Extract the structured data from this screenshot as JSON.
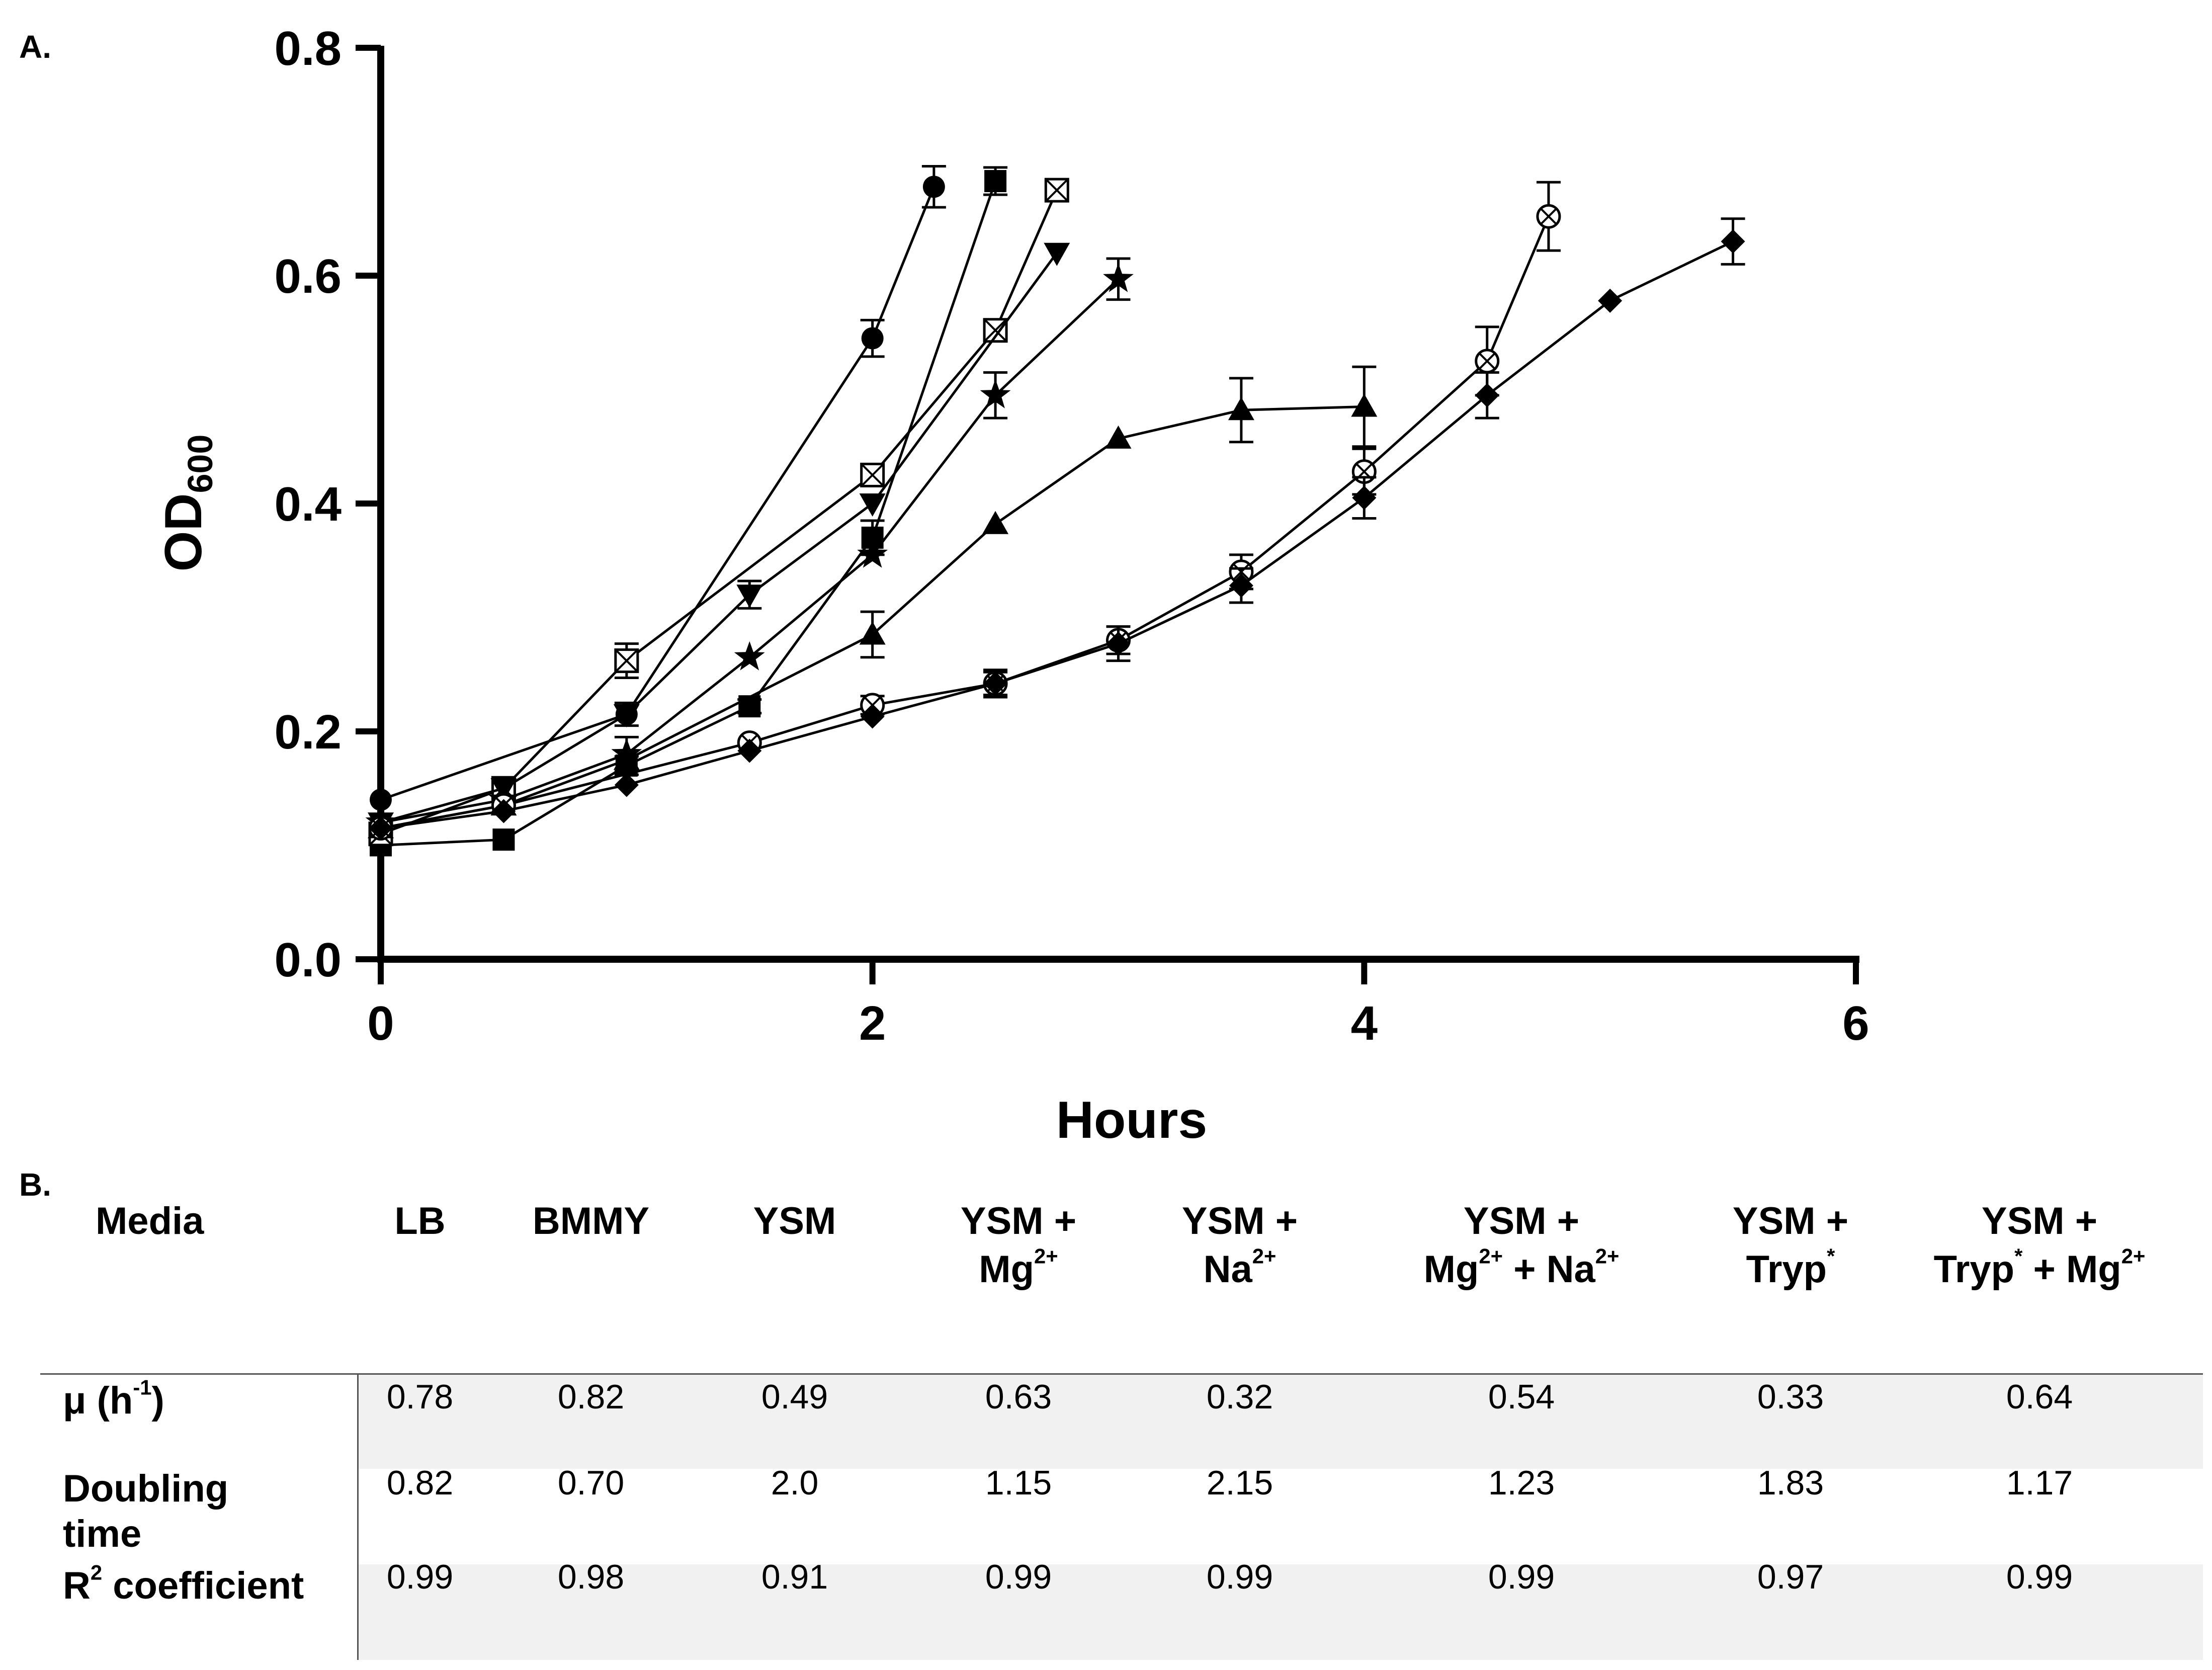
{
  "panel_a_label": "A.",
  "panel_b_label": "B.",
  "chart_data": {
    "type": "line",
    "title": "",
    "xlabel": "Hours",
    "ylabel_main": "OD",
    "ylabel_sub": "600",
    "xlim": [
      0,
      6
    ],
    "ylim": [
      0,
      0.8
    ],
    "xticks": [
      "0",
      "2",
      "4",
      "6"
    ],
    "yticks": [
      "0.0",
      "0.2",
      "0.4",
      "0.6",
      "0.8"
    ],
    "grid": false,
    "legend": "none",
    "series": [
      {
        "marker": "circle",
        "x": [
          0,
          1,
          2,
          2.25
        ],
        "y": [
          0.14,
          0.215,
          0.545,
          0.678
        ],
        "err": [
          0,
          0.01,
          0.016,
          0.018
        ]
      },
      {
        "marker": "square",
        "x": [
          0,
          0.5,
          1,
          1.5,
          2,
          2.5
        ],
        "y": [
          0.1,
          0.105,
          0.17,
          0.222,
          0.37,
          0.683
        ],
        "err": [
          0,
          0,
          0.008,
          0.006,
          0.015,
          0.012
        ]
      },
      {
        "marker": "square-x",
        "x": [
          0,
          0.5,
          1,
          2,
          2.5,
          2.75
        ],
        "y": [
          0.11,
          0.15,
          0.262,
          0.425,
          0.552,
          0.675
        ],
        "err": [
          0,
          0,
          0.015,
          0,
          0,
          0
        ]
      },
      {
        "marker": "triangle-down",
        "x": [
          0,
          0.5,
          1,
          1.5,
          2,
          2.75
        ],
        "y": [
          0.12,
          0.15,
          0.215,
          0.32,
          0.4,
          0.62
        ],
        "err": [
          0,
          0,
          0,
          0.012,
          0,
          0
        ]
      },
      {
        "marker": "star",
        "x": [
          0,
          0.5,
          1,
          1.5,
          2,
          2.5,
          3
        ],
        "y": [
          0.12,
          0.14,
          0.18,
          0.265,
          0.355,
          0.495,
          0.597
        ],
        "err": [
          0,
          0,
          0.015,
          0,
          0,
          0.02,
          0.018
        ]
      },
      {
        "marker": "triangle-up",
        "x": [
          0,
          0.5,
          1,
          2,
          2.5,
          3,
          3.5,
          4
        ],
        "y": [
          0.115,
          0.135,
          0.175,
          0.285,
          0.382,
          0.457,
          0.482,
          0.485
        ],
        "err": [
          0,
          0,
          0,
          0.02,
          0,
          0,
          0.028,
          0.035
        ]
      },
      {
        "marker": "circle-x",
        "x": [
          0,
          0.5,
          1.5,
          2,
          2.5,
          3,
          3.5,
          4,
          4.5,
          4.75
        ],
        "y": [
          0.115,
          0.135,
          0.19,
          0.223,
          0.242,
          0.28,
          0.34,
          0.428,
          0.525,
          0.652
        ],
        "err": [
          0,
          0,
          0,
          0.008,
          0.01,
          0.012,
          0.015,
          0.02,
          0.03,
          0.03
        ]
      },
      {
        "marker": "diamond",
        "x": [
          0,
          0.5,
          1,
          1.5,
          2,
          2.5,
          3,
          3.5,
          4,
          4.5,
          5,
          5.5
        ],
        "y": [
          0.115,
          0.13,
          0.153,
          0.183,
          0.213,
          0.242,
          0.277,
          0.328,
          0.405,
          0.495,
          0.578,
          0.63
        ],
        "err": [
          0,
          0,
          0,
          0,
          0,
          0.012,
          0.015,
          0.015,
          0.018,
          0.02,
          0,
          0.02
        ]
      }
    ]
  },
  "table": {
    "header_media": "Media",
    "columns": [
      {
        "l1": "LB",
        "l2": "",
        "sup2": "",
        "mid": "",
        "sup3": ""
      },
      {
        "l1": "BMMY",
        "l2": "",
        "sup2": "",
        "mid": "",
        "sup3": ""
      },
      {
        "l1": "YSM",
        "l2": "",
        "sup2": "",
        "mid": "",
        "sup3": ""
      },
      {
        "l1": "YSM +",
        "l2": "Mg",
        "sup2": "2+",
        "mid": "",
        "sup3": ""
      },
      {
        "l1": "YSM +",
        "l2": "Na",
        "sup2": "2+",
        "mid": "",
        "sup3": ""
      },
      {
        "l1": "YSM +",
        "l2": "Mg",
        "sup2": "2+",
        "mid": " + Na",
        "sup3": "2+"
      },
      {
        "l1": "YSM +",
        "l2": "Tryp",
        "sup2": "*",
        "mid": "",
        "sup3": ""
      },
      {
        "l1": "YSM +",
        "l2": "Tryp",
        "sup2": "*",
        "mid": " + Mg",
        "sup3": "2+"
      }
    ],
    "row_mu": {
      "pre": "μ (h",
      "sup": "-1",
      "post": ")",
      "values": [
        "0.78",
        "0.82",
        "0.49",
        "0.63",
        "0.32",
        "0.54",
        "0.33",
        "0.64"
      ]
    },
    "row_dt": {
      "line1": "Doubling",
      "line2": "time",
      "values": [
        "0.82",
        "0.70",
        "2.0",
        "1.15",
        "2.15",
        "1.23",
        "1.83",
        "1.17"
      ]
    },
    "row_r2": {
      "pre": "R",
      "sup": "2",
      "post": " coefficient",
      "values": [
        "0.99",
        "0.98",
        "0.91",
        "0.99",
        "0.99",
        "0.99",
        "0.97",
        "0.99"
      ]
    }
  }
}
